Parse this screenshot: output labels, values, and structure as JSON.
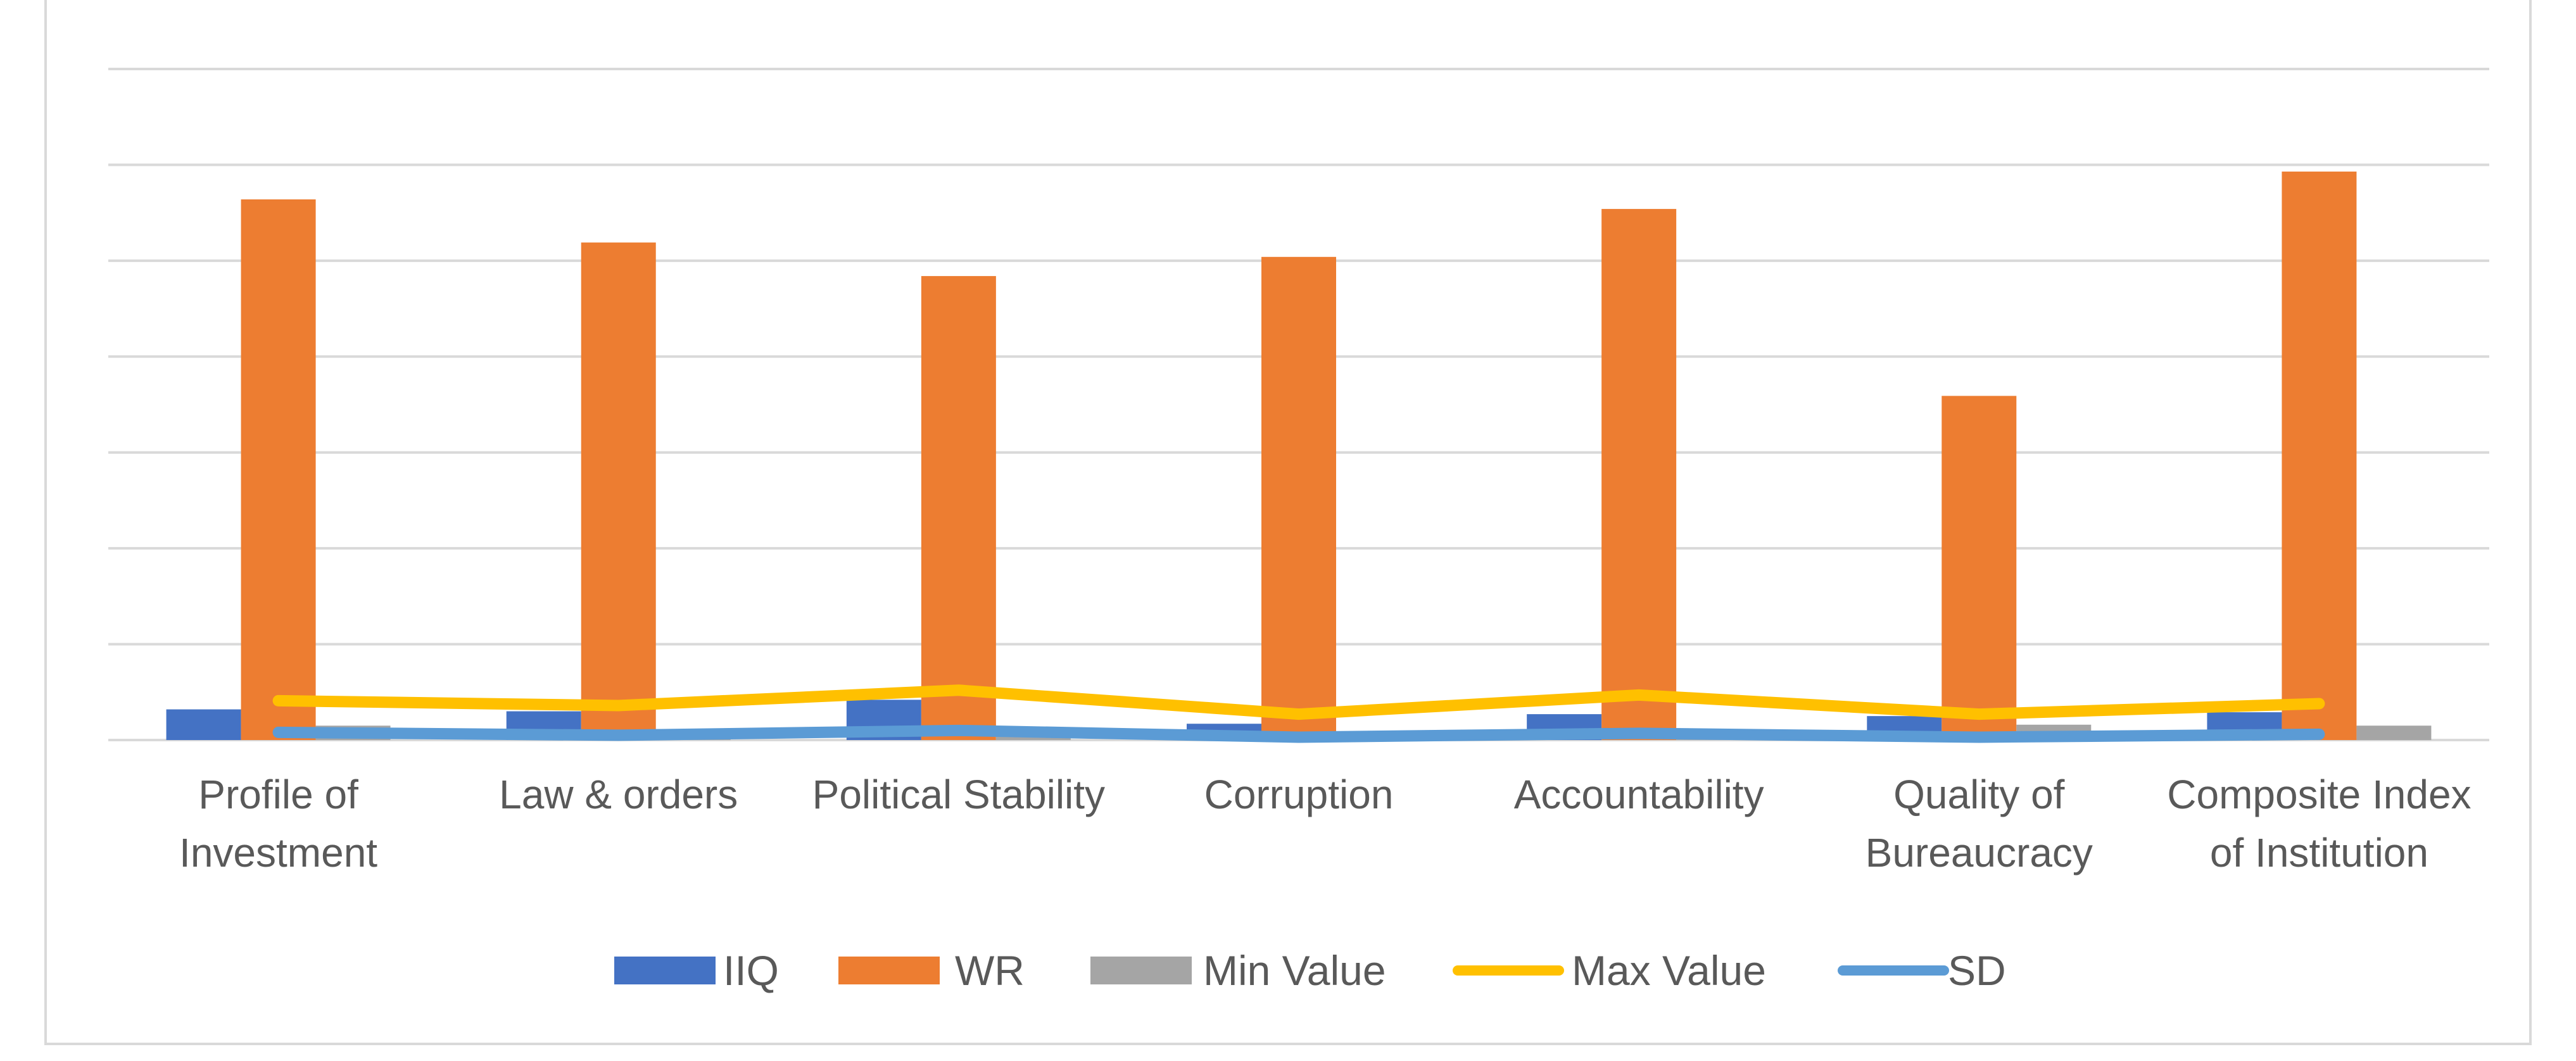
{
  "chart_data": {
    "type": "bar",
    "title": "",
    "xlabel": "",
    "ylabel": "",
    "ylim": [
      0,
      7
    ],
    "grid": true,
    "legend_position": "bottom",
    "categories": [
      [
        "Profile of",
        "Investment"
      ],
      [
        "Law & orders"
      ],
      [
        "Political Stability"
      ],
      [
        "Corruption"
      ],
      [
        "Accountability"
      ],
      [
        "Quality of",
        "Bureaucracy"
      ],
      [
        "Composite Index",
        "of Institution"
      ]
    ],
    "series": [
      {
        "name": "IIQ",
        "kind": "bar",
        "color": "#4472C4",
        "values": [
          0.32,
          0.3,
          0.42,
          0.17,
          0.27,
          0.25,
          0.29
        ]
      },
      {
        "name": "WR",
        "kind": "bar",
        "color": "#ED7D31",
        "values": [
          5.64,
          5.19,
          4.84,
          5.04,
          5.54,
          3.59,
          5.93
        ]
      },
      {
        "name": "Min Value",
        "kind": "bar",
        "color": "#A5A5A5",
        "values": [
          0.15,
          0.08,
          0.12,
          0.06,
          0.1,
          0.16,
          0.15
        ]
      },
      {
        "name": "Max Value",
        "kind": "line",
        "color": "#FFC000",
        "values": [
          0.41,
          0.36,
          0.52,
          0.27,
          0.47,
          0.27,
          0.38
        ]
      },
      {
        "name": "SD",
        "kind": "line",
        "color": "#5B9BD5",
        "values": [
          0.08,
          0.05,
          0.1,
          0.03,
          0.07,
          0.03,
          0.06
        ]
      }
    ]
  }
}
